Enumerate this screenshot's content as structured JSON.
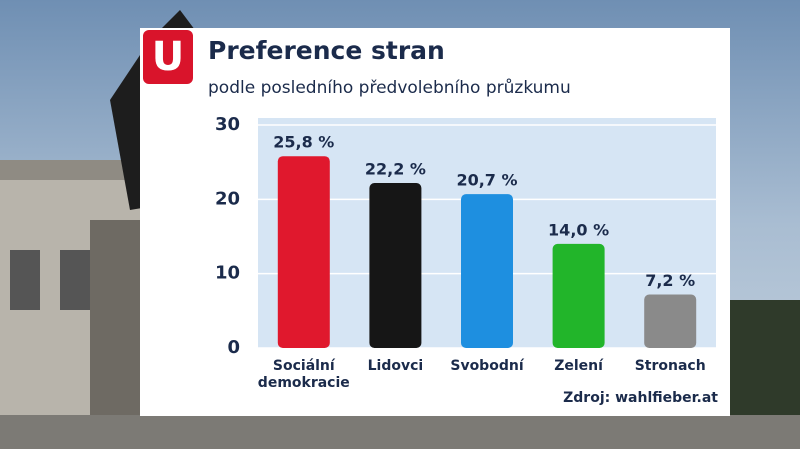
{
  "logo": "U",
  "chart_data": {
    "type": "bar",
    "title": "Preference stran",
    "subtitle": "podle posledního předvolebního průzkumu",
    "categories": [
      "Sociální demokracie",
      "Lidovci",
      "Svobodní",
      "Zelení",
      "Stronach"
    ],
    "values": [
      25.8,
      22.2,
      20.7,
      14.0,
      7.2
    ],
    "value_labels": [
      "25,8 %",
      "22,2 %",
      "20,7 %",
      "14,0 %",
      "7,2 %"
    ],
    "colors": [
      "#e0182d",
      "#161616",
      "#1e8fe0",
      "#22b52a",
      "#8a8a8a"
    ],
    "ylim": [
      0,
      30
    ],
    "yticks": [
      0,
      10,
      20,
      30
    ],
    "grid": true,
    "source": "Zdroj: wahlfieber.at"
  }
}
